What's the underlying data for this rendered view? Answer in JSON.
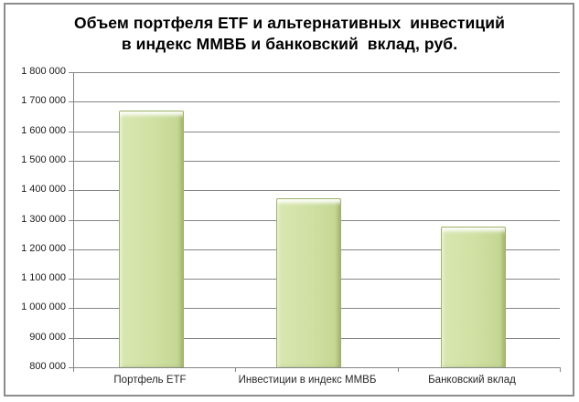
{
  "window": {
    "background_color": "#ffffff",
    "border_color": "#8c8c8c"
  },
  "chart_data": {
    "type": "bar",
    "title": "Объем портфеля ETF и альтернативных инвестиций в индекс ММВБ и банковский вклад, руб.",
    "title_lines": [
      "Объем портфеля ETF и альтернативных  инвестиций",
      "в индекс ММВБ и банковский  вклад, руб."
    ],
    "categories": [
      "Портфель ETF",
      "Инвестиции в индекс ММВБ",
      "Банковский вклад"
    ],
    "values": [
      1670000,
      1374000,
      1278000
    ],
    "xlabel": "",
    "ylabel": "",
    "ylim": [
      800000,
      1800000
    ],
    "ytick_step": 100000,
    "ytick_labels_top_down": [
      "1 800 000",
      "1 700 000",
      "1 600 000",
      "1 500 000",
      "1 400 000",
      "1 300 000",
      "1 200 000",
      "1 100 000",
      "1 000 000",
      "900 000",
      "800 000"
    ],
    "grid": true,
    "legend": null,
    "bar_fill_color": "#d0e1a4",
    "bar_border_color": "#9db266",
    "gridline_color": "#858585",
    "text_color": "#000000"
  }
}
